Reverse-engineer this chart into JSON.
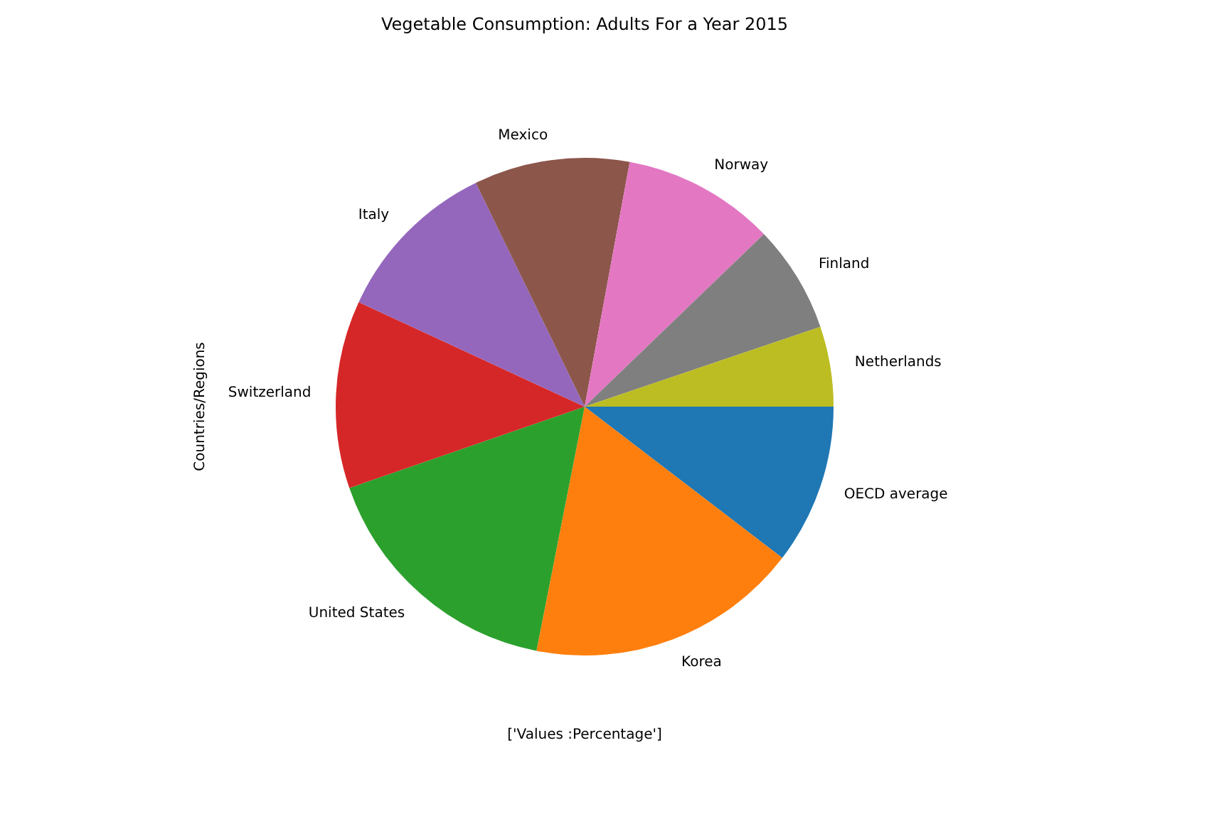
{
  "chart_data": {
    "type": "pie",
    "title": "Vegetable Consumption: Adults For a Year 2015",
    "xlabel": "['Values :Percentage']",
    "ylabel": "Countries/Regions",
    "categories": [
      "OECD average",
      "Korea",
      "United States",
      "Switzerland",
      "Italy",
      "Mexico",
      "Norway",
      "Finland",
      "Netherlands"
    ],
    "values": [
      10.4,
      17.7,
      16.6,
      12.2,
      10.9,
      10.1,
      9.9,
      7.0,
      5.2
    ],
    "colors": [
      "#1f77b4",
      "#ff7f0e",
      "#2ca02c",
      "#d62728",
      "#9467bd",
      "#8c564b",
      "#e377c2",
      "#7f7f7f",
      "#bcbd22"
    ],
    "legend": false
  }
}
